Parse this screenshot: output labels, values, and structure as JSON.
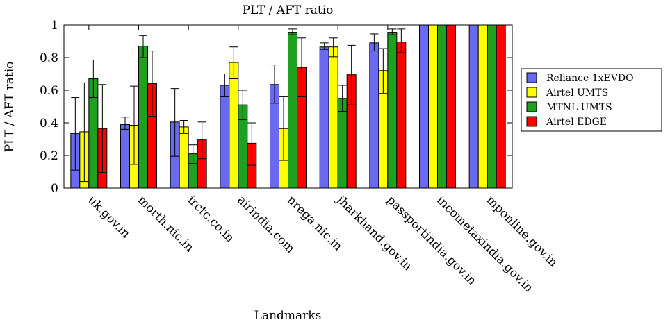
{
  "chart_data": {
    "type": "bar",
    "title": "PLT / AFT ratio",
    "xlabel": "Landmarks",
    "ylabel": "PLT / AFT ratio",
    "ylim": [
      0,
      1
    ],
    "yticks": [
      "0",
      "0.2",
      "0.4",
      "0.6",
      "0.8",
      "1"
    ],
    "grid": false,
    "legend_position": "right",
    "categories": [
      "uk.gov.in",
      "morth.nic.in",
      "irctc.co.in",
      "airindia.com",
      "nrega.nic.in",
      "jharkhand.gov.in",
      "passportindia.gov.in",
      "incometaxindia.gov.in",
      "mponline.gov.in"
    ],
    "series": [
      {
        "name": "Reliance 1xEVDO",
        "color": "#6a6af0",
        "values": [
          0.335,
          0.39,
          0.405,
          0.63,
          0.635,
          0.865,
          0.89,
          1.0,
          1.0
        ],
        "error": [
          [
            0.11,
            0.555
          ],
          [
            0.36,
            0.435
          ],
          [
            0.195,
            0.61
          ],
          [
            0.56,
            0.7
          ],
          [
            0.52,
            0.755
          ],
          [
            0.85,
            0.89
          ],
          [
            0.84,
            0.945
          ],
          [
            1.0,
            1.0
          ],
          [
            1.0,
            1.0
          ]
        ]
      },
      {
        "name": "Airtel UMTS",
        "color": "#ffff00",
        "values": [
          0.345,
          0.385,
          0.375,
          0.77,
          0.365,
          0.865,
          0.72,
          1.0,
          1.0
        ],
        "error": [
          [
            0.04,
            0.645
          ],
          [
            0.145,
            0.625
          ],
          [
            0.335,
            0.415
          ],
          [
            0.67,
            0.865
          ],
          [
            0.17,
            0.56
          ],
          [
            0.805,
            0.92
          ],
          [
            0.58,
            0.855
          ],
          [
            1.0,
            1.0
          ],
          [
            1.0,
            1.0
          ]
        ]
      },
      {
        "name": "MTNL UMTS",
        "color": "#1fa01f",
        "values": [
          0.67,
          0.87,
          0.21,
          0.51,
          0.955,
          0.55,
          0.955,
          1.0,
          1.0
        ],
        "error": [
          [
            0.555,
            0.785
          ],
          [
            0.8,
            0.935
          ],
          [
            0.15,
            0.265
          ],
          [
            0.42,
            0.6
          ],
          [
            0.94,
            0.975
          ],
          [
            0.47,
            0.63
          ],
          [
            0.94,
            0.975
          ],
          [
            1.0,
            1.0
          ],
          [
            1.0,
            1.0
          ]
        ]
      },
      {
        "name": "Airtel EDGE",
        "color": "#ff0000",
        "values": [
          0.365,
          0.64,
          0.295,
          0.275,
          0.74,
          0.695,
          0.895,
          1.0,
          1.0
        ],
        "error": [
          [
            0.095,
            0.635
          ],
          [
            0.44,
            0.84
          ],
          [
            0.18,
            0.405
          ],
          [
            0.14,
            0.4
          ],
          [
            0.56,
            0.92
          ],
          [
            0.51,
            0.875
          ],
          [
            0.83,
            0.975
          ],
          [
            1.0,
            1.0
          ],
          [
            1.0,
            1.0
          ]
        ]
      }
    ]
  }
}
